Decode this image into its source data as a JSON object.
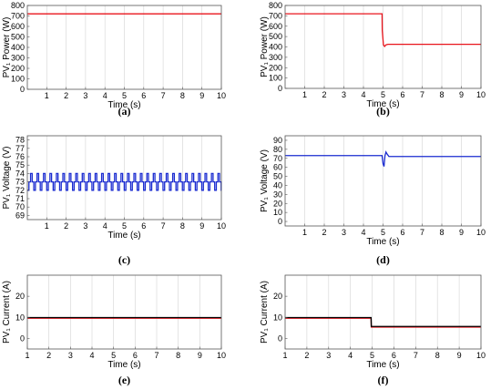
{
  "chart_data": [
    {
      "type": "line",
      "caption": "(a)",
      "xlabel": "Time (s)",
      "ylabel": "PV₁ Power (W)",
      "xlim": [
        0,
        10
      ],
      "ylim": [
        0,
        800
      ],
      "xticks": [
        1,
        2,
        3,
        4,
        5,
        6,
        7,
        8,
        9,
        10
      ],
      "yticks": [
        0,
        100,
        200,
        300,
        400,
        500,
        600,
        700,
        800
      ],
      "grid": true,
      "series": [
        {
          "color": "#e8141c",
          "x": [
            0,
            10
          ],
          "y": [
            720,
            720
          ]
        }
      ]
    },
    {
      "type": "line",
      "caption": "(b)",
      "xlabel": "Time (s)",
      "ylabel": "PV₁ Power (W)",
      "xlim": [
        0,
        10
      ],
      "ylim": [
        0,
        800
      ],
      "xticks": [
        1,
        2,
        3,
        4,
        5,
        6,
        7,
        8,
        9,
        10
      ],
      "yticks": [
        0,
        100,
        200,
        300,
        400,
        500,
        600,
        700,
        800
      ],
      "grid": true,
      "series": [
        {
          "color": "#e8141c",
          "x": [
            0,
            4.95,
            4.96,
            5.02,
            5.08,
            5.15,
            5.25,
            10
          ],
          "y": [
            720,
            720,
            560,
            420,
            405,
            420,
            425,
            425
          ]
        }
      ]
    },
    {
      "type": "line",
      "caption": "(c)",
      "xlabel": "Time (s)",
      "ylabel": "PV₁ Voltage (V)",
      "xlim": [
        0,
        10
      ],
      "ylim": [
        68.5,
        78.5
      ],
      "xticks": [
        1,
        2,
        3,
        4,
        5,
        6,
        7,
        8,
        9,
        10
      ],
      "yticks": [
        69,
        70,
        71,
        72,
        73,
        74,
        75,
        76,
        77,
        78
      ],
      "grid": true,
      "series": [
        {
          "color": "#1a2bd0",
          "pattern": "mppt-oscillation",
          "start": 0,
          "end": 10,
          "period": 0.333,
          "levels": [
            72.0,
            73.0,
            74.0,
            73.0
          ]
        }
      ]
    },
    {
      "type": "line",
      "caption": "(d)",
      "xlabel": "Time (s)",
      "ylabel": "PV₁ Voltage (V)",
      "xlim": [
        0,
        10
      ],
      "ylim": [
        -5,
        95
      ],
      "xticks": [
        1,
        2,
        3,
        4,
        5,
        6,
        7,
        8,
        9,
        10
      ],
      "yticks": [
        0,
        10,
        20,
        30,
        40,
        50,
        60,
        70,
        80,
        90
      ],
      "grid": true,
      "series": [
        {
          "color": "#1a2bd0",
          "x": [
            0,
            4.95,
            5.0,
            5.05,
            5.1,
            5.15,
            5.2,
            5.3,
            10
          ],
          "y": [
            73,
            73,
            64,
            61,
            73,
            77,
            75,
            72,
            72
          ]
        }
      ]
    },
    {
      "type": "line",
      "caption": "(e)",
      "xlabel": "Time (s)",
      "ylabel": "PV₁ Current (A)",
      "xlim": [
        1,
        10
      ],
      "ylim": [
        -5,
        30
      ],
      "xticks": [
        1,
        2,
        3,
        4,
        5,
        6,
        7,
        8,
        9,
        10
      ],
      "yticks": [
        0,
        10,
        20
      ],
      "grid": true,
      "series": [
        {
          "color": "#e8141c",
          "x": [
            1,
            10
          ],
          "y": [
            9.6,
            9.6
          ]
        },
        {
          "color": "#000000",
          "x": [
            1,
            10
          ],
          "y": [
            9.9,
            9.9
          ]
        }
      ]
    },
    {
      "type": "line",
      "caption": "(f)",
      "xlabel": "Time (s)",
      "ylabel": "PV₁ Current (A)",
      "xlim": [
        1,
        10
      ],
      "ylim": [
        -5,
        30
      ],
      "xticks": [
        1,
        2,
        3,
        4,
        5,
        6,
        7,
        8,
        9,
        10
      ],
      "yticks": [
        0,
        10,
        20
      ],
      "grid": true,
      "series": [
        {
          "color": "#e8141c",
          "x": [
            1,
            4.95,
            4.96,
            10
          ],
          "y": [
            9.6,
            9.6,
            5.4,
            5.4
          ]
        },
        {
          "color": "#000000",
          "x": [
            1,
            4.95,
            4.96,
            10
          ],
          "y": [
            9.9,
            9.9,
            5.7,
            5.7
          ]
        }
      ]
    }
  ]
}
